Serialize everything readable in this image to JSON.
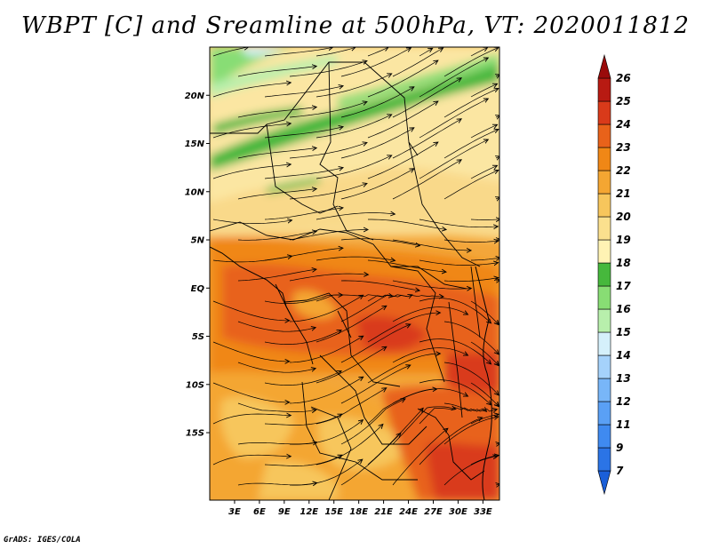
{
  "title": "WBPT [C] and Sreamline at 500hPa, VT: 2020011812",
  "credit": "GrADS: IGES/COLA",
  "map": {
    "lon_labels": [
      "3E",
      "6E",
      "9E",
      "12E",
      "15E",
      "18E",
      "21E",
      "24E",
      "27E",
      "30E",
      "33E"
    ],
    "lat_labels": [
      "20N",
      "15N",
      "10N",
      "5N",
      "EQ",
      "5S",
      "10S",
      "15S"
    ],
    "lon_range": [
      0,
      35
    ],
    "lat_range": [
      -22,
      25
    ],
    "field": "wet-bulb potential temperature",
    "overlay": "streamlines",
    "level": "500hPa"
  },
  "colorbar": {
    "labels": [
      "7",
      "9",
      "11",
      "12",
      "13",
      "14",
      "15",
      "16",
      "17",
      "18",
      "19",
      "20",
      "21",
      "22",
      "23",
      "24",
      "25",
      "26"
    ],
    "colors": [
      "#1a5fd8",
      "#2b74e6",
      "#3f8af0",
      "#5aa0f5",
      "#78b6f8",
      "#a5d2fb",
      "#d5f0fb",
      "#b8efac",
      "#88dd74",
      "#46b83c",
      "#fff3b4",
      "#fbe08e",
      "#f7c65c",
      "#f4a632",
      "#f08716",
      "#e8621a",
      "#d93a1a",
      "#b81a12",
      "#9a0b0b"
    ]
  }
}
